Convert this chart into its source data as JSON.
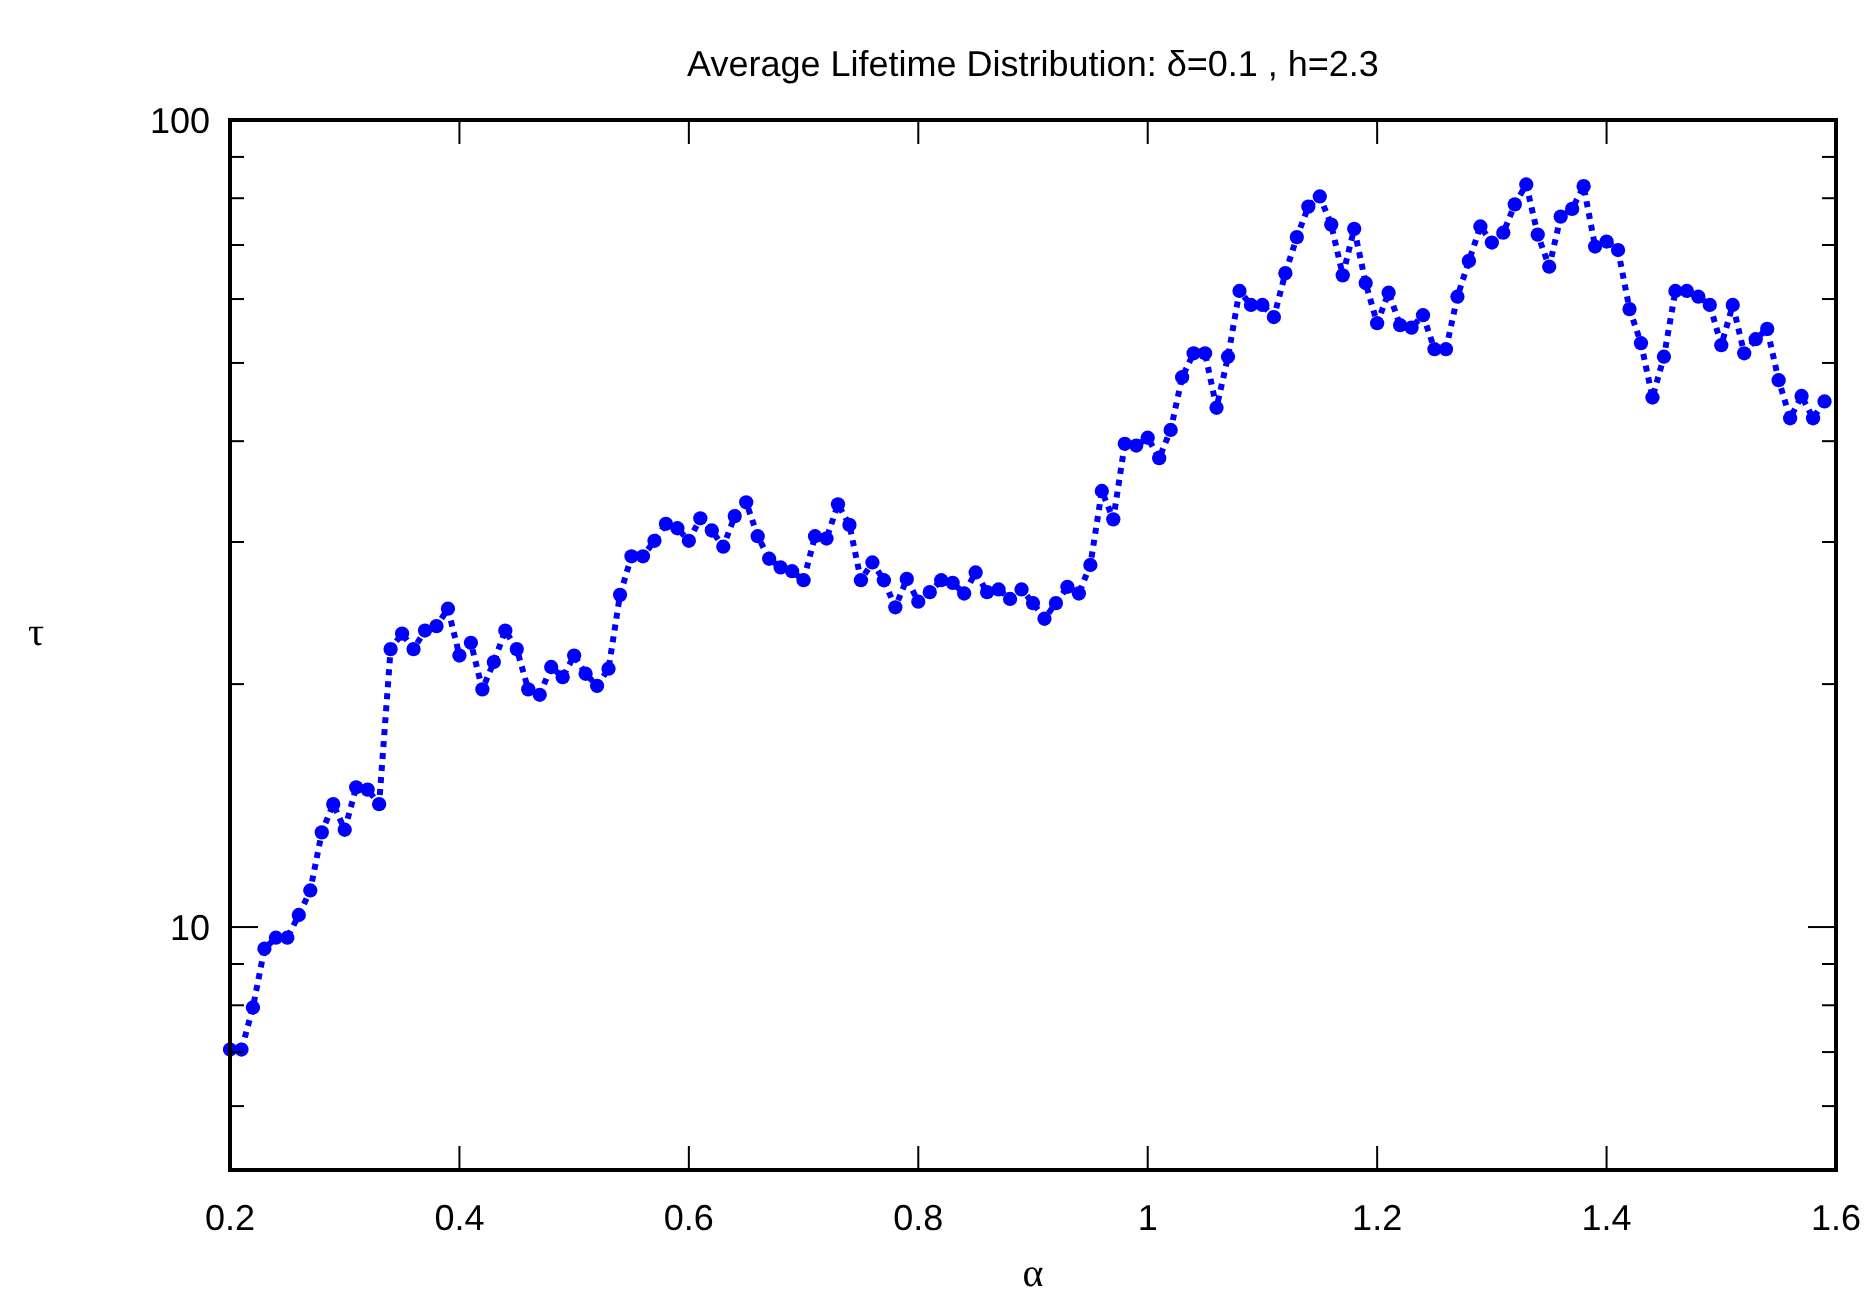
{
  "chart_data": {
    "type": "line",
    "title": "Average Lifetime Distribution: δ=0.1 , h=2.3",
    "xlabel": "α",
    "ylabel": "τ",
    "log": "y",
    "marker": "circle",
    "line_style": "dotted",
    "grid": false,
    "xlim": [
      0.2,
      1.6
    ],
    "xticks": [
      0.2,
      0.4,
      0.6,
      0.8,
      1,
      1.2,
      1.4,
      1.6
    ],
    "ylim": [
      5,
      100
    ],
    "yticks": [
      {
        "value": 6,
        "label": null
      },
      {
        "value": 7,
        "label": null
      },
      {
        "value": 8,
        "label": null
      },
      {
        "value": 9,
        "label": null
      },
      10,
      {
        "value": 20,
        "label": null
      },
      {
        "value": 30,
        "label": null
      },
      {
        "value": 40,
        "label": null
      },
      {
        "value": 50,
        "label": null
      },
      {
        "value": 60,
        "label": null
      },
      {
        "value": 70,
        "label": null
      },
      {
        "value": 80,
        "label": null
      },
      {
        "value": 90,
        "label": null
      },
      100
    ],
    "x": [
      0.2,
      0.21,
      0.22,
      0.23,
      0.24,
      0.25,
      0.26,
      0.27,
      0.28,
      0.29,
      0.3,
      0.31,
      0.32,
      0.33,
      0.34,
      0.35,
      0.36,
      0.37,
      0.38,
      0.39,
      0.4,
      0.41,
      0.42,
      0.43,
      0.44,
      0.45,
      0.46,
      0.47,
      0.48,
      0.49,
      0.5,
      0.51,
      0.52,
      0.53,
      0.54,
      0.55,
      0.56,
      0.57,
      0.58,
      0.59,
      0.6,
      0.61,
      0.62,
      0.63,
      0.64,
      0.65,
      0.66,
      0.67,
      0.68,
      0.69,
      0.7,
      0.71,
      0.72,
      0.73,
      0.74,
      0.75,
      0.76,
      0.77,
      0.78,
      0.79,
      0.8,
      0.81,
      0.82,
      0.83,
      0.84,
      0.85,
      0.86,
      0.87,
      0.88,
      0.89,
      0.9,
      0.91,
      0.92,
      0.93,
      0.94,
      0.95,
      0.96,
      0.97,
      0.98,
      0.99,
      1,
      1.01,
      1.02,
      1.03,
      1.04,
      1.05,
      1.06,
      1.07,
      1.08,
      1.09,
      1.1,
      1.11,
      1.12,
      1.13,
      1.14,
      1.15,
      1.16,
      1.17,
      1.18,
      1.19,
      1.2,
      1.21,
      1.22,
      1.23,
      1.24,
      1.25,
      1.26,
      1.27,
      1.28,
      1.29,
      1.3,
      1.31,
      1.32,
      1.33,
      1.34,
      1.35,
      1.36,
      1.37,
      1.38,
      1.39,
      1.4,
      1.41,
      1.42,
      1.43,
      1.44,
      1.45,
      1.46,
      1.47,
      1.48,
      1.49,
      1.5,
      1.51,
      1.52,
      1.53,
      1.54,
      1.55,
      1.56,
      1.57,
      1.58,
      1.59
    ],
    "series": [
      {
        "color": "#0000ff",
        "values": [
          7.05,
          7.05,
          7.95,
          9.4,
          9.7,
          9.7,
          10.35,
          11.1,
          13.1,
          14.2,
          13.2,
          14.9,
          14.8,
          14.2,
          22.1,
          23.1,
          22.1,
          23.3,
          23.6,
          24.8,
          21.7,
          22.5,
          19.7,
          21.3,
          23.3,
          22.1,
          19.7,
          19.4,
          21.0,
          20.4,
          21.7,
          20.6,
          19.9,
          20.9,
          25.8,
          28.8,
          28.8,
          30.1,
          31.6,
          31.2,
          30.1,
          32.1,
          31.0,
          29.6,
          32.3,
          33.6,
          30.5,
          28.6,
          27.9,
          27.6,
          26.9,
          30.5,
          30.3,
          33.4,
          31.5,
          26.9,
          28.3,
          26.9,
          24.9,
          27.0,
          25.3,
          26.0,
          26.9,
          26.7,
          25.9,
          27.5,
          26.0,
          26.2,
          25.5,
          26.2,
          25.2,
          24.1,
          25.2,
          26.4,
          25.9,
          28.1,
          34.7,
          32.0,
          39.7,
          39.5,
          40.4,
          38.1,
          41.3,
          48.0,
          51.4,
          51.4,
          44.0,
          50.9,
          61.4,
          59.0,
          59.0,
          57.0,
          64.6,
          71.6,
          78.1,
          80.4,
          74.2,
          64.2,
          73.3,
          62.8,
          56.0,
          61.1,
          55.7,
          55.3,
          57.3,
          52.0,
          52.0,
          60.4,
          66.9,
          73.8,
          70.5,
          72.5,
          78.6,
          83.2,
          72.1,
          65.8,
          75.9,
          77.6,
          82.8,
          69.7,
          70.7,
          69.0,
          58.3,
          52.9,
          45.3,
          50.9,
          61.4,
          61.4,
          60.4,
          59.0,
          52.6,
          59.0,
          51.4,
          53.5,
          55.1,
          47.6,
          42.7,
          45.5,
          42.7,
          44.8
        ]
      }
    ]
  }
}
